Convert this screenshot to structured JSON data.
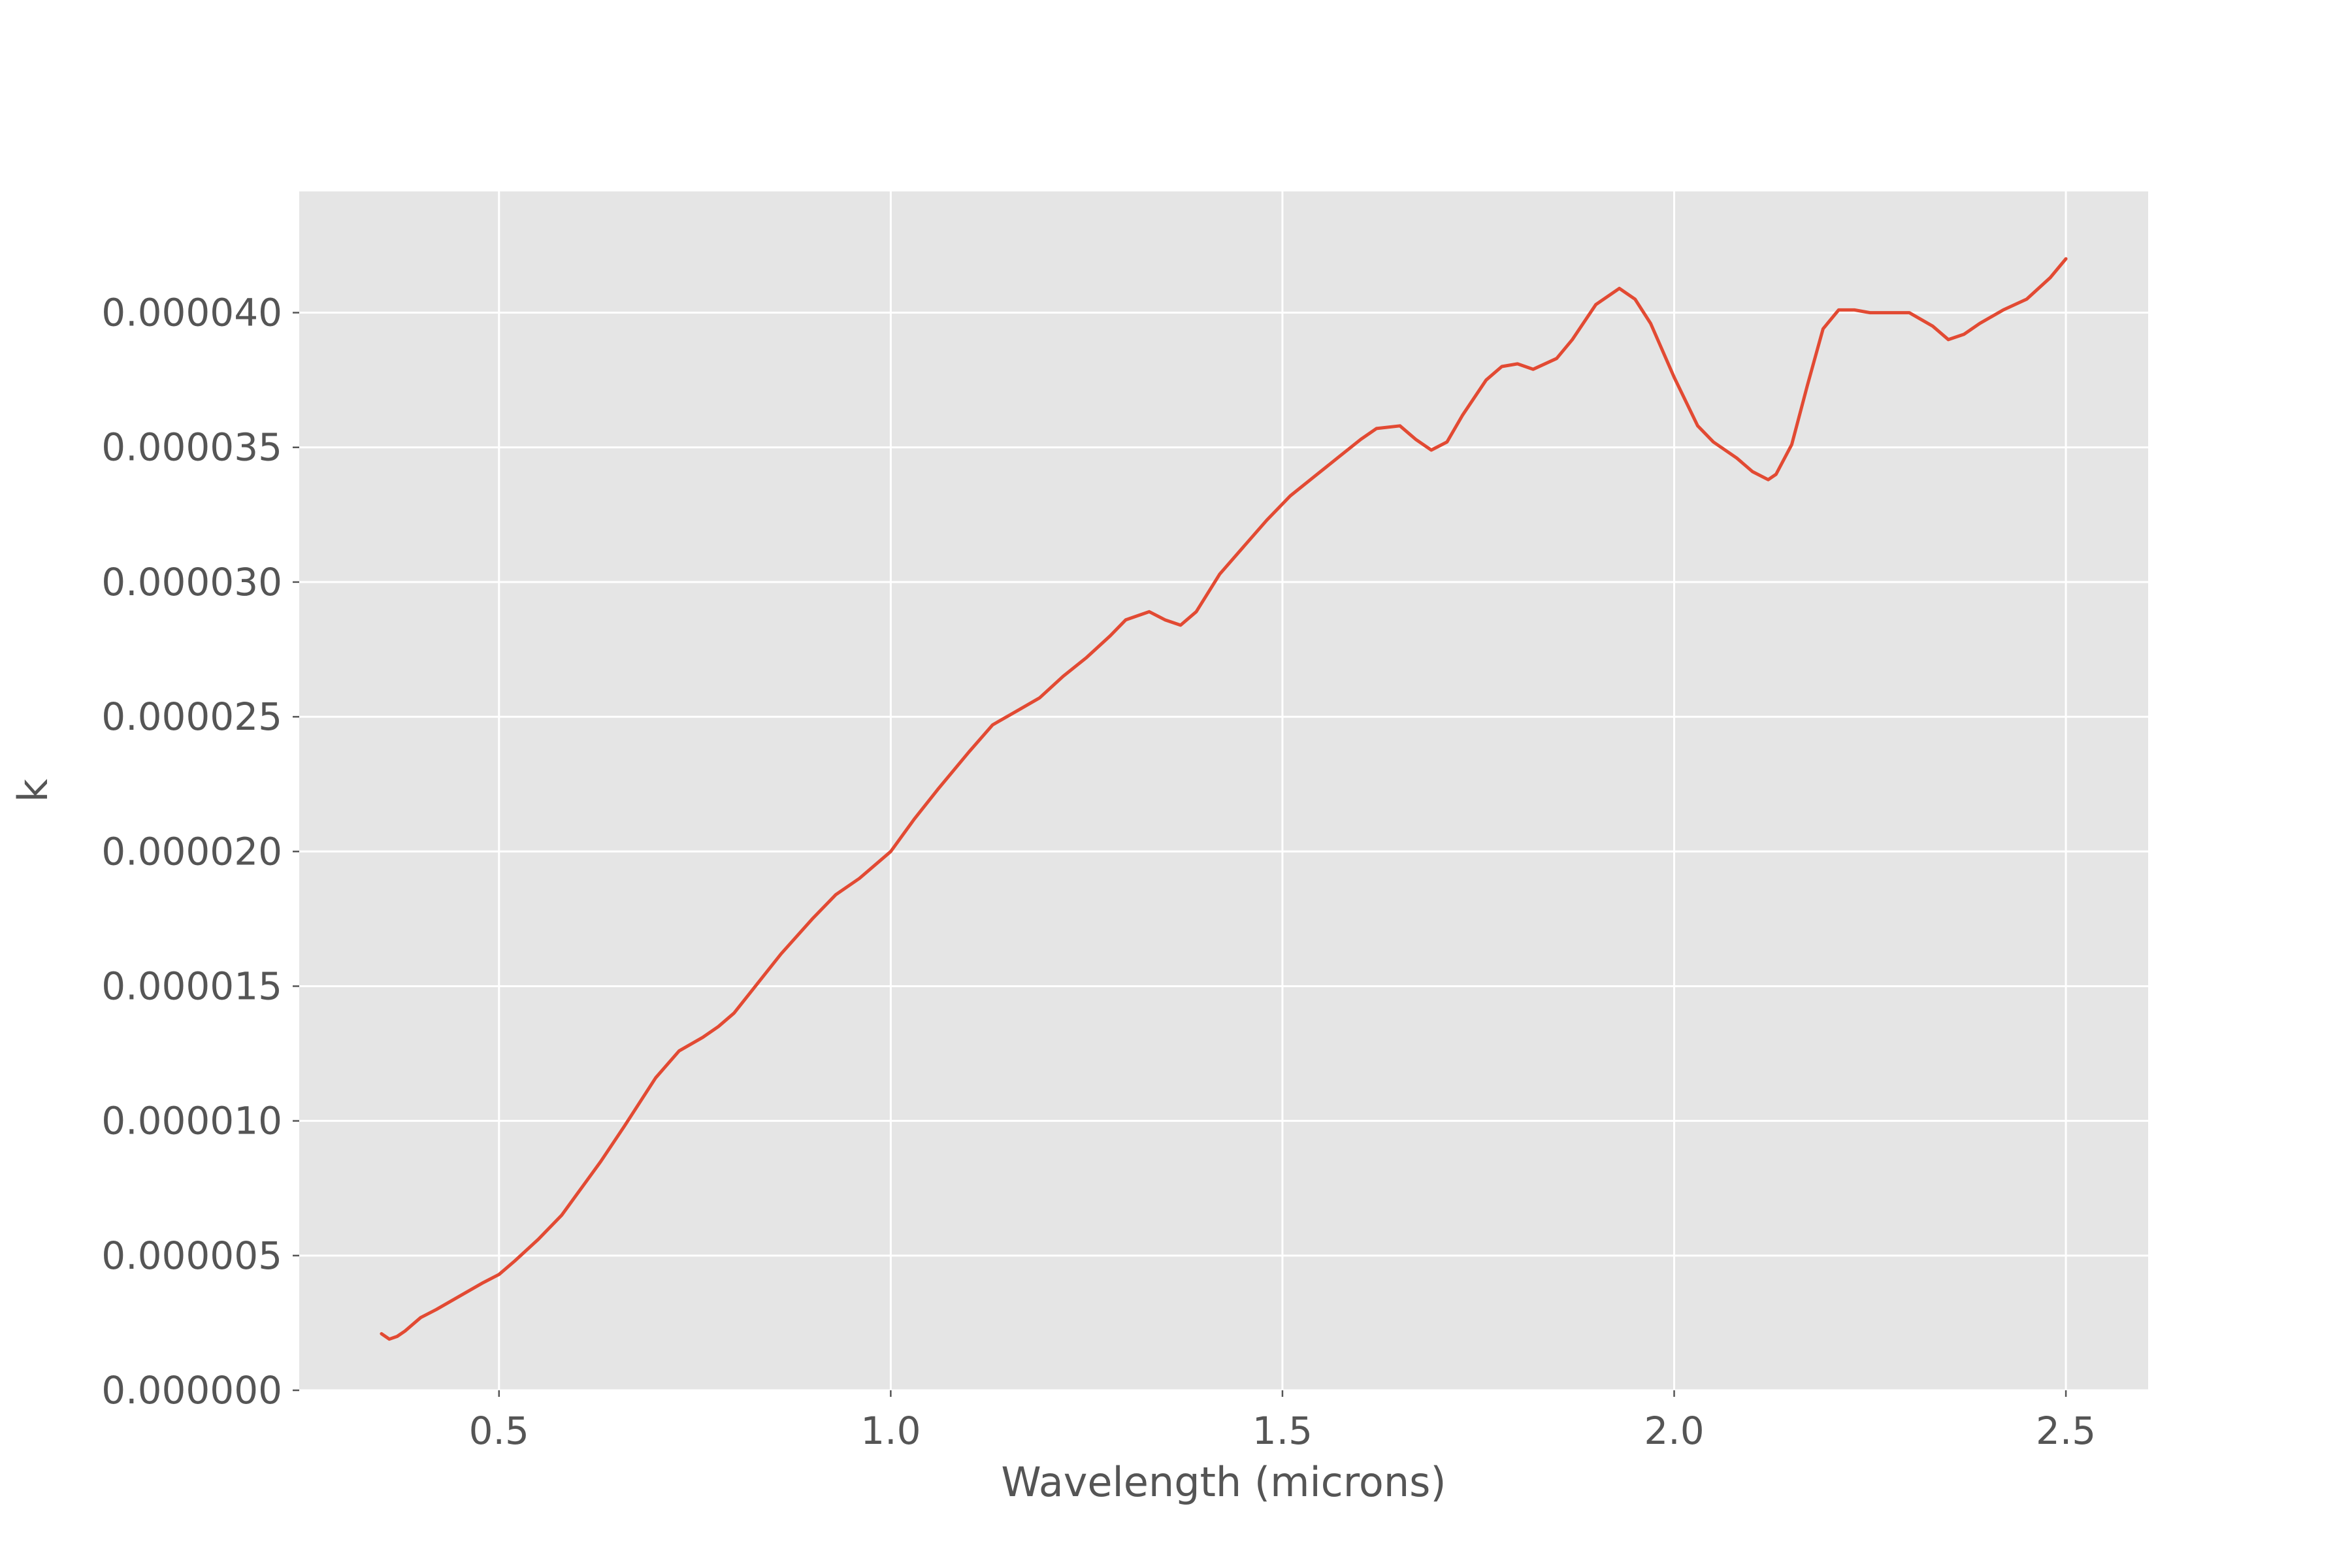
{
  "chart_data": {
    "type": "line",
    "title": "",
    "xlabel": "Wavelength (microns)",
    "ylabel": "k",
    "xlim": [
      0.245,
      2.605
    ],
    "ylim": [
      0.0,
      4.45e-05
    ],
    "grid": true,
    "xticks": [
      0.5,
      1.0,
      1.5,
      2.0,
      2.5
    ],
    "xtick_labels": [
      "0.5",
      "1.0",
      "1.5",
      "2.0",
      "2.5"
    ],
    "yticks": [
      0.0,
      5e-06,
      1e-05,
      1.5e-05,
      2e-05,
      2.5e-05,
      3e-05,
      3.5e-05,
      4e-05
    ],
    "ytick_labels": [
      "0.000000",
      "0.000005",
      "0.000010",
      "0.000015",
      "0.000020",
      "0.000025",
      "0.000030",
      "0.000035",
      "0.000040"
    ],
    "colors": {
      "line": "#E24A33",
      "plot_background": "#E5E5E5",
      "grid": "#FFFFFF",
      "text": "#555555"
    },
    "series": [
      {
        "x": [
          0.35,
          0.36,
          0.37,
          0.38,
          0.4,
          0.42,
          0.45,
          0.48,
          0.5,
          0.52,
          0.55,
          0.58,
          0.6,
          0.63,
          0.66,
          0.7,
          0.73,
          0.76,
          0.78,
          0.8,
          0.83,
          0.86,
          0.9,
          0.93,
          0.96,
          1.0,
          1.03,
          1.06,
          1.1,
          1.13,
          1.16,
          1.19,
          1.22,
          1.25,
          1.28,
          1.3,
          1.33,
          1.35,
          1.37,
          1.39,
          1.42,
          1.45,
          1.48,
          1.51,
          1.54,
          1.57,
          1.6,
          1.62,
          1.65,
          1.67,
          1.69,
          1.71,
          1.73,
          1.76,
          1.78,
          1.8,
          1.82,
          1.85,
          1.87,
          1.9,
          1.93,
          1.95,
          1.97,
          2.0,
          2.03,
          2.05,
          2.08,
          2.1,
          2.12,
          2.13,
          2.15,
          2.17,
          2.19,
          2.21,
          2.23,
          2.25,
          2.27,
          2.3,
          2.33,
          2.35,
          2.37,
          2.39,
          2.42,
          2.45,
          2.48,
          2.5
        ],
        "y": [
          2.1e-06,
          1.9e-06,
          2e-06,
          2.2e-06,
          2.7e-06,
          3e-06,
          3.5e-06,
          4e-06,
          4.3e-06,
          4.8e-06,
          5.6e-06,
          6.5e-06,
          7.3e-06,
          8.5e-06,
          9.8e-06,
          1.16e-05,
          1.26e-05,
          1.31e-05,
          1.35e-05,
          1.4e-05,
          1.51e-05,
          1.62e-05,
          1.75e-05,
          1.84e-05,
          1.9e-05,
          2e-05,
          2.12e-05,
          2.23e-05,
          2.37e-05,
          2.47e-05,
          2.52e-05,
          2.57e-05,
          2.65e-05,
          2.72e-05,
          2.8e-05,
          2.86e-05,
          2.89e-05,
          2.86e-05,
          2.84e-05,
          2.89e-05,
          3.03e-05,
          3.13e-05,
          3.23e-05,
          3.32e-05,
          3.39e-05,
          3.46e-05,
          3.53e-05,
          3.57e-05,
          3.58e-05,
          3.53e-05,
          3.49e-05,
          3.52e-05,
          3.62e-05,
          3.75e-05,
          3.8e-05,
          3.81e-05,
          3.79e-05,
          3.83e-05,
          3.9e-05,
          4.03e-05,
          4.09e-05,
          4.05e-05,
          3.96e-05,
          3.76e-05,
          3.58e-05,
          3.52e-05,
          3.46e-05,
          3.41e-05,
          3.38e-05,
          3.4e-05,
          3.51e-05,
          3.73e-05,
          3.94e-05,
          4.01e-05,
          4.01e-05,
          4e-05,
          4e-05,
          4e-05,
          3.95e-05,
          3.9e-05,
          3.92e-05,
          3.96e-05,
          4.01e-05,
          4.05e-05,
          4.13e-05,
          4.2e-05
        ]
      }
    ]
  }
}
